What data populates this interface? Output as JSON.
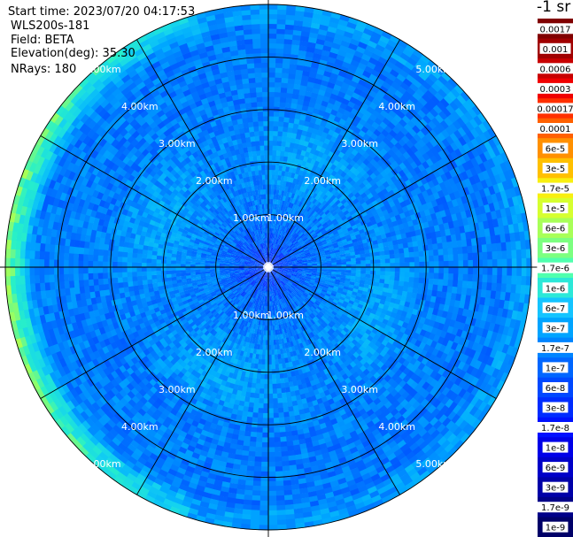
{
  "header": {
    "start_time": "Start time: 2023/07/20 04:17:53",
    "device": "WLS200s-181",
    "field": "Field: BETA",
    "elevation": "Elevation(deg): 35.30",
    "nrays": "NRays: 180"
  },
  "colorbar": {
    "unit": "-1 sr",
    "labels": [
      "0.0017",
      "0.001",
      "0.0006",
      "0.0003",
      "0.00017",
      "0.0001",
      "6e-5",
      "3e-5",
      "1.7e-5",
      "1e-5",
      "6e-6",
      "3e-6",
      "1.7e-6",
      "1e-6",
      "6e-7",
      "3e-7",
      "1.7e-7",
      "1e-7",
      "6e-8",
      "3e-8",
      "1.7e-8",
      "1e-8",
      "6e-9",
      "3e-9",
      "1.7e-9",
      "1e-9"
    ],
    "colors": [
      "#800000",
      "#a00000",
      "#c80000",
      "#f00000",
      "#ff3000",
      "#ff6000",
      "#ff9000",
      "#ffc000",
      "#f8ef10",
      "#d6ff30",
      "#a8ff58",
      "#7cff80",
      "#50ffae",
      "#2ce8d8",
      "#14c4ff",
      "#00a4ff",
      "#0084ff",
      "#0066ff",
      "#0048ff",
      "#002cff",
      "#0010ff",
      "#0000e8",
      "#0000c8",
      "#0000a8",
      "#000088",
      "#000068"
    ]
  },
  "chart_data": {
    "type": "heatmap",
    "projection": "polar-ppi",
    "field": "BETA",
    "nrays": 180,
    "range_rings_km": [
      1.0,
      2.0,
      3.0,
      4.0,
      5.0
    ],
    "ring_labels": [
      "1.00km",
      "2.00km",
      "3.00km",
      "4.00km",
      "5.00km"
    ],
    "max_range_km": 5.0,
    "spokes_deg": [
      0,
      30,
      60,
      90,
      120,
      150,
      180,
      210,
      240,
      270,
      300,
      330
    ],
    "value_scale": "log",
    "value_range": [
      1e-09,
      0.0017
    ],
    "typical_value": 1e-07,
    "notes_visible": "mostly 3e-8 to 1e-7 with lower values near center and higher values (1e-6 to 1e-5) at the outer western edge"
  }
}
